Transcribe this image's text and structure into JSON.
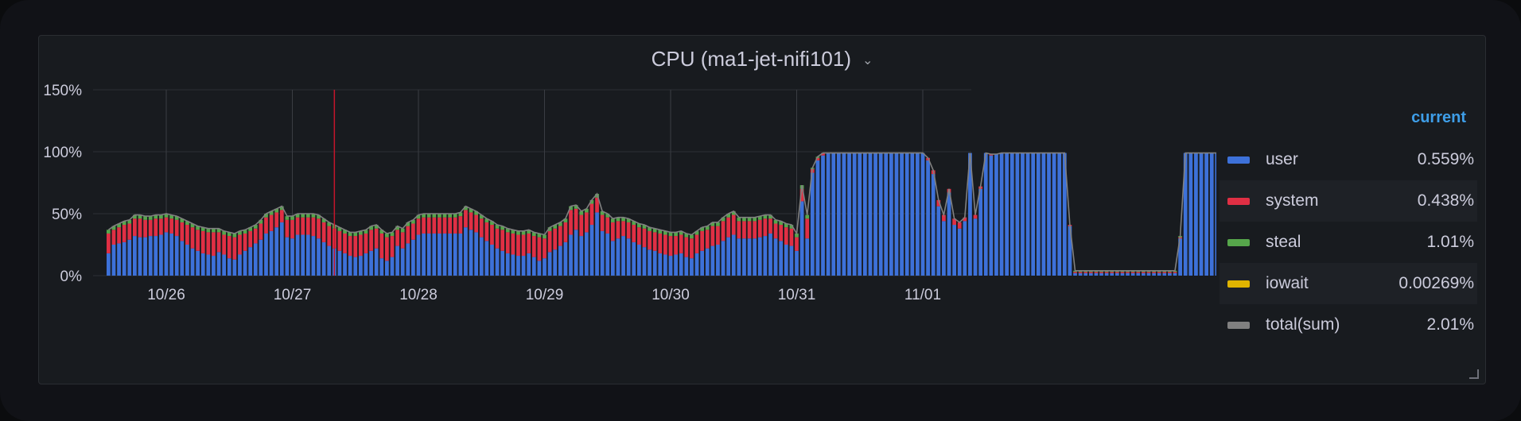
{
  "panel": {
    "title": "CPU (ma1-jet-nifi101)",
    "menu_icon": "chevron-down-icon"
  },
  "legend": {
    "header": "current",
    "items": [
      {
        "name": "user",
        "color": "#3d71d9",
        "current": "0.559%"
      },
      {
        "name": "system",
        "color": "#e02f44",
        "current": "0.438%"
      },
      {
        "name": "steal",
        "color": "#56a64b",
        "current": "1.01%"
      },
      {
        "name": "iowait",
        "color": "#e0b400",
        "current": "0.00269%"
      },
      {
        "name": "total(sum)",
        "color": "#808080",
        "current": "2.01%"
      }
    ]
  },
  "chart_data": {
    "type": "bar",
    "stacked": true,
    "x_tick_labels": [
      "10/26",
      "10/27",
      "10/28",
      "10/29",
      "10/30",
      "10/31",
      "11/01"
    ],
    "y_tick_labels": [
      "0%",
      "50%",
      "100%",
      "150%"
    ],
    "ylim": [
      0,
      150
    ],
    "grid": true,
    "legend_position": "right",
    "x_start": "10/25 13:00",
    "x_step_hours": 1,
    "series": [
      {
        "name": "user",
        "values": [
          18,
          25,
          26,
          27,
          29,
          32,
          31,
          31,
          32,
          32,
          33,
          35,
          34,
          32,
          28,
          25,
          22,
          20,
          18,
          17,
          16,
          19,
          17,
          14,
          13,
          17,
          20,
          23,
          26,
          29,
          34,
          36,
          39,
          43,
          31,
          30,
          33,
          33,
          33,
          32,
          30,
          27,
          24,
          22,
          20,
          18,
          16,
          15,
          16,
          18,
          20,
          22,
          14,
          12,
          15,
          24,
          22,
          26,
          29,
          33,
          34,
          34,
          34,
          34,
          34,
          34,
          34,
          34,
          39,
          37,
          35,
          31,
          28,
          25,
          22,
          20,
          18,
          17,
          16,
          16,
          18,
          15,
          12,
          14,
          19,
          21,
          24,
          27,
          33,
          37,
          32,
          35,
          41,
          51,
          36,
          34,
          28,
          30,
          32,
          30,
          27,
          25,
          23,
          21,
          20,
          18,
          17,
          16,
          17,
          18,
          15,
          14,
          18,
          20,
          22,
          24,
          25,
          28,
          31,
          33,
          30,
          30,
          30,
          30,
          31,
          32,
          34,
          30,
          28,
          25,
          24,
          20,
          60,
          30,
          83,
          93,
          97,
          99,
          99,
          99,
          99,
          99,
          99,
          99,
          99,
          99,
          99,
          99,
          99,
          99,
          99,
          99,
          99,
          99,
          99,
          99,
          93,
          82,
          56,
          44,
          67,
          41,
          38,
          44,
          99,
          46,
          70,
          99,
          97,
          98,
          99,
          99,
          99,
          99,
          99,
          99,
          99,
          99,
          99,
          99,
          99,
          99,
          99,
          40,
          2,
          2,
          2,
          2,
          2,
          2,
          2,
          2,
          2,
          2,
          2,
          2,
          2,
          2,
          2,
          2,
          2,
          2,
          2,
          2,
          30,
          99,
          99,
          99,
          99,
          99,
          99,
          99,
          72,
          1
        ]
      },
      {
        "name": "system",
        "values": [
          16,
          12,
          13,
          14,
          13,
          14,
          15,
          14,
          13,
          14,
          13,
          12,
          12,
          13,
          15,
          16,
          17,
          17,
          18,
          18,
          19,
          16,
          16,
          18,
          18,
          16,
          14,
          13,
          12,
          13,
          13,
          13,
          12,
          10,
          14,
          15,
          14,
          14,
          14,
          15,
          16,
          16,
          16,
          16,
          16,
          16,
          16,
          17,
          17,
          16,
          17,
          16,
          20,
          19,
          17,
          13,
          13,
          14,
          13,
          13,
          13,
          13,
          13,
          13,
          13,
          13,
          13,
          14,
          14,
          14,
          14,
          15,
          15,
          16,
          16,
          17,
          17,
          17,
          17,
          17,
          16,
          17,
          19,
          16,
          17,
          17,
          16,
          16,
          20,
          17,
          17,
          16,
          17,
          12,
          13,
          13,
          15,
          14,
          12,
          13,
          14,
          14,
          15,
          15,
          15,
          16,
          16,
          16,
          15,
          15,
          16,
          16,
          15,
          16,
          15,
          16,
          15,
          16,
          16,
          16,
          14,
          14,
          14,
          14,
          14,
          14,
          12,
          12,
          13,
          14,
          14,
          11,
          10,
          16,
          3,
          2,
          2,
          0,
          0,
          0,
          0,
          0,
          0,
          0,
          0,
          0,
          0,
          0,
          0,
          0,
          0,
          0,
          0,
          0,
          0,
          0,
          2,
          3,
          5,
          5,
          3,
          5,
          5,
          3,
          0,
          3,
          2,
          0,
          1,
          0,
          0,
          0,
          0,
          0,
          0,
          0,
          0,
          0,
          0,
          0,
          0,
          0,
          0,
          1,
          1,
          1,
          1,
          1,
          1,
          1,
          1,
          1,
          1,
          1,
          1,
          1,
          1,
          1,
          1,
          1,
          1,
          1,
          1,
          1,
          1,
          0,
          0,
          0,
          0,
          0,
          0,
          0,
          1,
          0
        ]
      },
      {
        "name": "steal",
        "values": [
          3,
          3,
          3,
          3,
          3,
          3,
          3,
          3,
          3,
          3,
          3,
          3,
          3,
          3,
          3,
          3,
          3,
          3,
          3,
          3,
          3,
          3,
          3,
          3,
          3,
          3,
          3,
          3,
          3,
          3,
          3,
          3,
          3,
          3,
          3,
          3,
          3,
          3,
          3,
          3,
          3,
          3,
          3,
          3,
          3,
          3,
          3,
          3,
          3,
          3,
          3,
          3,
          3,
          3,
          3,
          3,
          3,
          3,
          3,
          3,
          3,
          3,
          3,
          3,
          3,
          3,
          3,
          3,
          3,
          3,
          3,
          3,
          3,
          3,
          3,
          3,
          3,
          3,
          3,
          3,
          3,
          3,
          3,
          3,
          3,
          3,
          3,
          3,
          3,
          3,
          3,
          3,
          3,
          3,
          3,
          3,
          3,
          3,
          3,
          3,
          3,
          3,
          3,
          3,
          3,
          3,
          3,
          3,
          3,
          3,
          3,
          3,
          3,
          3,
          3,
          3,
          3,
          3,
          3,
          3,
          3,
          3,
          3,
          3,
          3,
          3,
          3,
          3,
          3,
          3,
          3,
          3,
          3,
          3,
          1,
          1,
          0,
          0,
          0,
          0,
          0,
          0,
          0,
          0,
          0,
          0,
          0,
          0,
          0,
          0,
          0,
          0,
          0,
          0,
          0,
          0,
          0,
          0,
          0,
          0,
          0,
          0,
          0,
          0,
          0,
          0,
          0,
          0,
          0,
          0,
          0,
          0,
          0,
          0,
          0,
          0,
          0,
          0,
          0,
          0,
          0,
          0,
          0,
          0,
          1,
          1,
          1,
          1,
          1,
          1,
          1,
          1,
          1,
          1,
          1,
          1,
          1,
          1,
          1,
          1,
          1,
          1,
          1,
          1,
          1,
          0,
          0,
          0,
          0,
          0,
          0,
          0,
          0,
          1
        ]
      },
      {
        "name": "iowait",
        "values": [
          0,
          0,
          0,
          0,
          0,
          0,
          0,
          0,
          0,
          0,
          0,
          0,
          0,
          0,
          0,
          0,
          0,
          0,
          0,
          0,
          0,
          0,
          0,
          0,
          0,
          0,
          0,
          0,
          0,
          0,
          0,
          0,
          0,
          0,
          0,
          0,
          0,
          0,
          0,
          0,
          0,
          0,
          0,
          0,
          0,
          0,
          0,
          0,
          0,
          0,
          0,
          0,
          0,
          0,
          0,
          0,
          0,
          0,
          0,
          0,
          0,
          0,
          0,
          0,
          0,
          0,
          0,
          0,
          0,
          0,
          0,
          0,
          0,
          0,
          0,
          0,
          0,
          0,
          0,
          0,
          0,
          0,
          0,
          0,
          0,
          0,
          0,
          0,
          0,
          0,
          0,
          0,
          0,
          0,
          0,
          0,
          0,
          0,
          0,
          0,
          0,
          0,
          0,
          0,
          0,
          0,
          0,
          0,
          0,
          0,
          0,
          0,
          0,
          0,
          0,
          0,
          0,
          0,
          0,
          0,
          0,
          0,
          0,
          0,
          0,
          0,
          0,
          0,
          0,
          0,
          0,
          0,
          0,
          0,
          0,
          0,
          0,
          0,
          0,
          0,
          0,
          0,
          0,
          0,
          0,
          0,
          0,
          0,
          0,
          0,
          0,
          0,
          0,
          0,
          0,
          0,
          0,
          0,
          0,
          0,
          0,
          0,
          0,
          0,
          0,
          0,
          0,
          0,
          0,
          0,
          0,
          0,
          0,
          0,
          0,
          0,
          0,
          0,
          0,
          0,
          0,
          0,
          0,
          0,
          0,
          0,
          0,
          0,
          0,
          0,
          0,
          0,
          0,
          0,
          0,
          0,
          0,
          0,
          0,
          0,
          0,
          0,
          0,
          0,
          0,
          0,
          0,
          0,
          0,
          0,
          0,
          0,
          0,
          0
        ]
      }
    ],
    "total_series": "total(sum)",
    "annotation": {
      "type": "vertical-line",
      "x": "10/27 08:00",
      "color": "#c4162a"
    }
  }
}
